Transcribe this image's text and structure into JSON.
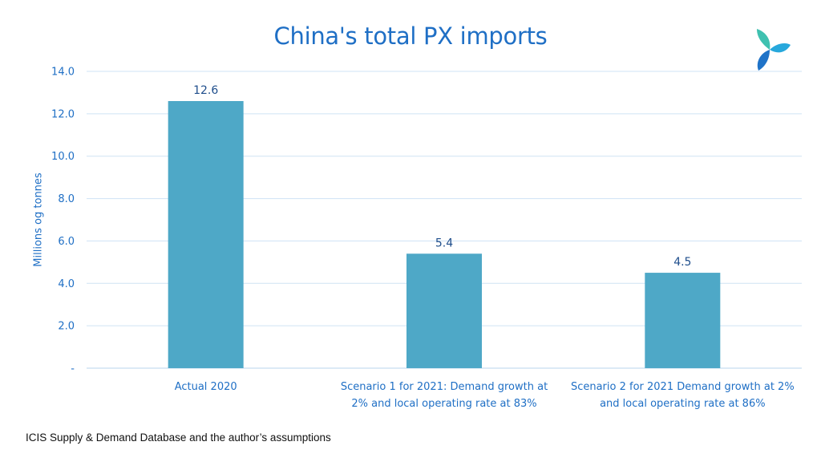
{
  "chart_data": {
    "type": "bar",
    "title": "China's total PX imports",
    "ylabel": "Millions og tonnes",
    "xlabel": "",
    "ylim": [
      0,
      14
    ],
    "yticks": [
      0,
      2,
      4,
      6,
      8,
      10,
      12,
      14
    ],
    "ytick_labels": [
      "-",
      "2.0",
      "4.0",
      "6.0",
      "8.0",
      "10.0",
      "12.0",
      "14.0"
    ],
    "categories": [
      [
        "Actual 2020"
      ],
      [
        "Scenario 1 for 2021: Demand growth at",
        "2% and local operating rate at 83%"
      ],
      [
        "Scenario 2 for 2021 Demand growth at 2%",
        "and local operating rate at 86%"
      ]
    ],
    "values": [
      12.6,
      5.4,
      4.5
    ],
    "data_labels": [
      "12.6",
      "5.4",
      "4.5"
    ],
    "grid": true,
    "legend": "none",
    "colors": {
      "bar": "#4ea8c7",
      "text": "#1f6fc5",
      "grid": "#cfe3f4"
    }
  },
  "source_note": "ICIS Supply & Demand Database and the author’s assumptions",
  "logo": {
    "icon": "icis-logo-icon"
  }
}
